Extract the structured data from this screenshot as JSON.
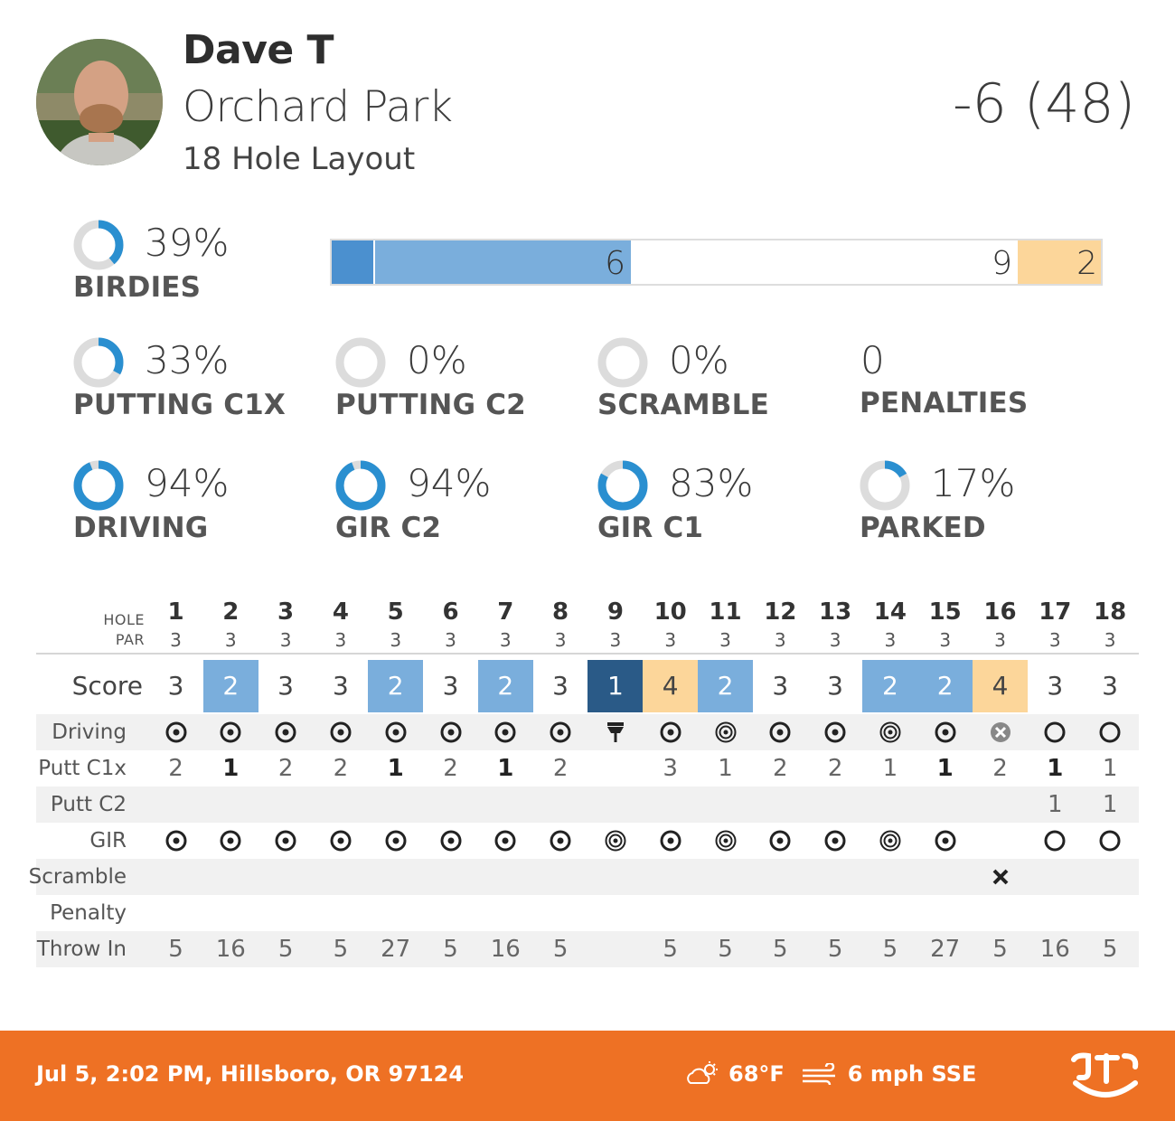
{
  "player": {
    "name": "Dave T",
    "course": "Orchard Park",
    "layout": "18 Hole Layout",
    "total": "-6 (48)"
  },
  "stats": {
    "birdies": {
      "pct": "39%",
      "label": "BIRDIES",
      "value": 0.39
    },
    "putt_c1x": {
      "pct": "33%",
      "label": "PUTTING C1X",
      "value": 0.33
    },
    "putt_c2": {
      "pct": "0%",
      "label": "PUTTING C2",
      "value": 0.0
    },
    "scramble": {
      "pct": "0%",
      "label": "SCRAMBLE",
      "value": 0.0
    },
    "penalties": {
      "pct": "0",
      "label": "PENALTIES"
    },
    "driving": {
      "pct": "94%",
      "label": "DRIVING",
      "value": 0.94
    },
    "gir_c2": {
      "pct": "94%",
      "label": "GIR C2",
      "value": 0.94
    },
    "gir_c1": {
      "pct": "83%",
      "label": "GIR C1",
      "value": 0.83
    },
    "parked": {
      "pct": "17%",
      "label": "PARKED",
      "value": 0.17
    }
  },
  "distribution": {
    "counts": {
      "ace": 1,
      "birdie": 6,
      "par": 9,
      "bogey": 2
    },
    "labels": {
      "birdie": "6",
      "par": "9",
      "bogey": "2"
    }
  },
  "colors": {
    "ring": "#2a8fd0",
    "ring_track": "#dcdcdc",
    "ace": "#2a5a87",
    "eagle_seg": "#4b90cf",
    "birdie": "#7aaedc",
    "bogey": "#fcd69a",
    "footer": "#ee7124"
  },
  "table": {
    "hole_label": "HOLE",
    "par_label": "PAR",
    "holes": [
      "1",
      "2",
      "3",
      "4",
      "5",
      "6",
      "7",
      "8",
      "9",
      "10",
      "11",
      "12",
      "13",
      "14",
      "15",
      "16",
      "17",
      "18"
    ],
    "pars": [
      "3",
      "3",
      "3",
      "3",
      "3",
      "3",
      "3",
      "3",
      "3",
      "3",
      "3",
      "3",
      "3",
      "3",
      "3",
      "3",
      "3",
      "3"
    ],
    "score_label": "Score",
    "scores": [
      "3",
      "2",
      "3",
      "3",
      "2",
      "3",
      "2",
      "3",
      "1",
      "4",
      "2",
      "3",
      "3",
      "2",
      "2",
      "4",
      "3",
      "3"
    ],
    "driving_label": "Driving",
    "driving": [
      "fairway",
      "fairway",
      "fairway",
      "fairway",
      "fairway",
      "fairway",
      "fairway",
      "fairway",
      "basket",
      "fairway",
      "parked",
      "fairway",
      "fairway",
      "parked",
      "fairway",
      "ob",
      "miss",
      "miss"
    ],
    "putt_c1x_label": "Putt C1x",
    "putt_c1x": [
      "2",
      "1",
      "2",
      "2",
      "1",
      "2",
      "1",
      "2",
      "",
      "3",
      "1",
      "2",
      "2",
      "1",
      "1",
      "2",
      "1",
      "1"
    ],
    "putt_c1x_bold": [
      false,
      true,
      false,
      false,
      true,
      false,
      true,
      false,
      false,
      false,
      false,
      false,
      false,
      false,
      true,
      false,
      true,
      false
    ],
    "putt_c2_label": "Putt C2",
    "putt_c2": [
      "",
      "",
      "",
      "",
      "",
      "",
      "",
      "",
      "",
      "",
      "",
      "",
      "",
      "",
      "",
      "",
      "1",
      "1"
    ],
    "gir_label": "GIR",
    "gir": [
      "hit",
      "hit",
      "hit",
      "hit",
      "hit",
      "hit",
      "hit",
      "hit",
      "parked",
      "hit",
      "parked",
      "hit",
      "hit",
      "parked",
      "hit",
      "",
      "miss",
      "miss"
    ],
    "scramble_label": "Scramble",
    "scramble": [
      "",
      "",
      "",
      "",
      "",
      "",
      "",
      "",
      "",
      "",
      "",
      "",
      "",
      "",
      "",
      "fail",
      "",
      ""
    ],
    "penalty_label": "Penalty",
    "throw_in_label": "Throw In",
    "throw_in": [
      "5",
      "16",
      "5",
      "5",
      "27",
      "5",
      "16",
      "5",
      "",
      "5",
      "5",
      "5",
      "5",
      "5",
      "27",
      "5",
      "16",
      "5"
    ]
  },
  "footer": {
    "location": "Jul 5, 2:02 PM, Hillsboro, OR 97124",
    "temp": "68°F",
    "wind": "6 mph SSE",
    "weather_icon": "partly-cloudy-icon",
    "wind_icon": "wind-icon",
    "logo": "udisc-logo"
  }
}
